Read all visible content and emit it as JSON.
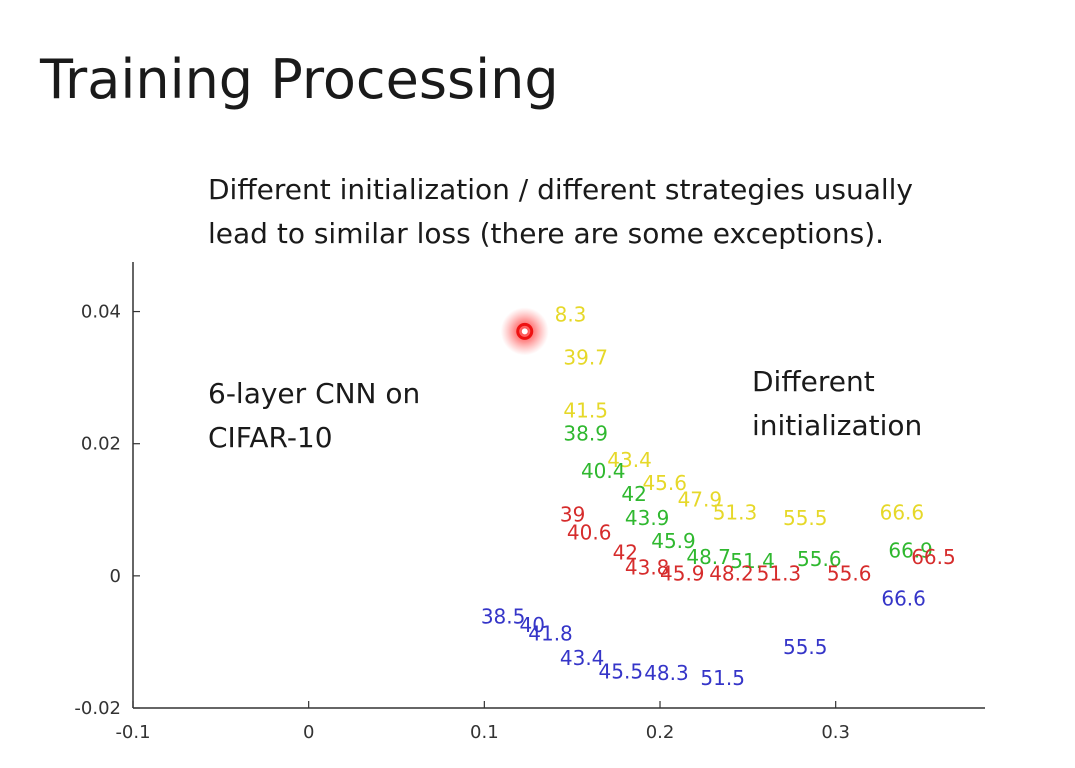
{
  "page": {
    "title": "Training Processing",
    "subtitle_lines": [
      "Different initialization / different strategies usually",
      "lead to similar loss (there are some exceptions)."
    ],
    "left_annotation_lines": [
      "6-layer CNN on",
      "CIFAR-10"
    ],
    "right_annotation_lines": [
      "Different",
      "initialization"
    ]
  },
  "chart_data": {
    "type": "scatter",
    "title": "",
    "xlabel": "",
    "ylabel": "",
    "xlim": [
      -0.1,
      0.385
    ],
    "ylim": [
      -0.02,
      0.0475
    ],
    "xticks": [
      -0.1,
      0,
      0.1,
      0.2,
      0.3
    ],
    "xtick_labels": [
      "-0.1",
      "0",
      "0.1",
      "0.2",
      "0.3"
    ],
    "yticks": [
      -0.02,
      0,
      0.02,
      0.04
    ],
    "ytick_labels": [
      "-0.02",
      "0",
      "0.02",
      "0.04"
    ],
    "grid": false,
    "highlight_point": {
      "x": 0.123,
      "y": 0.037,
      "color": "#ee1111"
    },
    "series": [
      {
        "color": "#e6d829",
        "points": [
          {
            "x": 0.14,
            "y": 0.0385,
            "label": "8.3"
          },
          {
            "x": 0.145,
            "y": 0.032,
            "label": "39.7"
          },
          {
            "x": 0.145,
            "y": 0.024,
            "label": "41.5"
          },
          {
            "x": 0.17,
            "y": 0.0165,
            "label": "43.4"
          },
          {
            "x": 0.19,
            "y": 0.013,
            "label": "45.6"
          },
          {
            "x": 0.21,
            "y": 0.0105,
            "label": "47.9"
          },
          {
            "x": 0.23,
            "y": 0.0085,
            "label": "51.3"
          },
          {
            "x": 0.27,
            "y": 0.0077,
            "label": "55.5"
          },
          {
            "x": 0.325,
            "y": 0.0085,
            "label": "66.6"
          }
        ]
      },
      {
        "color": "#2fb82f",
        "points": [
          {
            "x": 0.145,
            "y": 0.0205,
            "label": "38.9"
          },
          {
            "x": 0.155,
            "y": 0.0148,
            "label": "40.4"
          },
          {
            "x": 0.178,
            "y": 0.0113,
            "label": "42"
          },
          {
            "x": 0.18,
            "y": 0.0077,
            "label": "43.9"
          },
          {
            "x": 0.195,
            "y": 0.0042,
            "label": "45.9"
          },
          {
            "x": 0.215,
            "y": 0.0018,
            "label": "48.7"
          },
          {
            "x": 0.24,
            "y": 0.0012,
            "label": "51.4"
          },
          {
            "x": 0.278,
            "y": 0.0015,
            "label": "55.6"
          },
          {
            "x": 0.33,
            "y": 0.0028,
            "label": "66.9"
          }
        ]
      },
      {
        "color": "#d62c2c",
        "points": [
          {
            "x": 0.143,
            "y": 0.0082,
            "label": "39"
          },
          {
            "x": 0.147,
            "y": 0.0055,
            "label": "40.6"
          },
          {
            "x": 0.173,
            "y": 0.0025,
            "label": "42"
          },
          {
            "x": 0.18,
            "y": 0.0002,
            "label": "43.8"
          },
          {
            "x": 0.2,
            "y": -0.0007,
            "label": "45.9"
          },
          {
            "x": 0.228,
            "y": -0.0007,
            "label": "48.2"
          },
          {
            "x": 0.255,
            "y": -0.0007,
            "label": "51.3"
          },
          {
            "x": 0.295,
            "y": -0.0007,
            "label": "55.6"
          },
          {
            "x": 0.343,
            "y": 0.0018,
            "label": "66.5"
          }
        ]
      },
      {
        "color": "#3535c8",
        "points": [
          {
            "x": 0.098,
            "y": -0.0072,
            "label": "38.5"
          },
          {
            "x": 0.12,
            "y": -0.0085,
            "label": "40"
          },
          {
            "x": 0.125,
            "y": -0.0098,
            "label": "41.8"
          },
          {
            "x": 0.143,
            "y": -0.0135,
            "label": "43.4"
          },
          {
            "x": 0.165,
            "y": -0.0155,
            "label": "45.5"
          },
          {
            "x": 0.191,
            "y": -0.0158,
            "label": "48.3"
          },
          {
            "x": 0.223,
            "y": -0.0165,
            "label": "51.5"
          },
          {
            "x": 0.27,
            "y": -0.0118,
            "label": "55.5"
          },
          {
            "x": 0.326,
            "y": -0.0045,
            "label": "66.6"
          }
        ]
      }
    ]
  }
}
